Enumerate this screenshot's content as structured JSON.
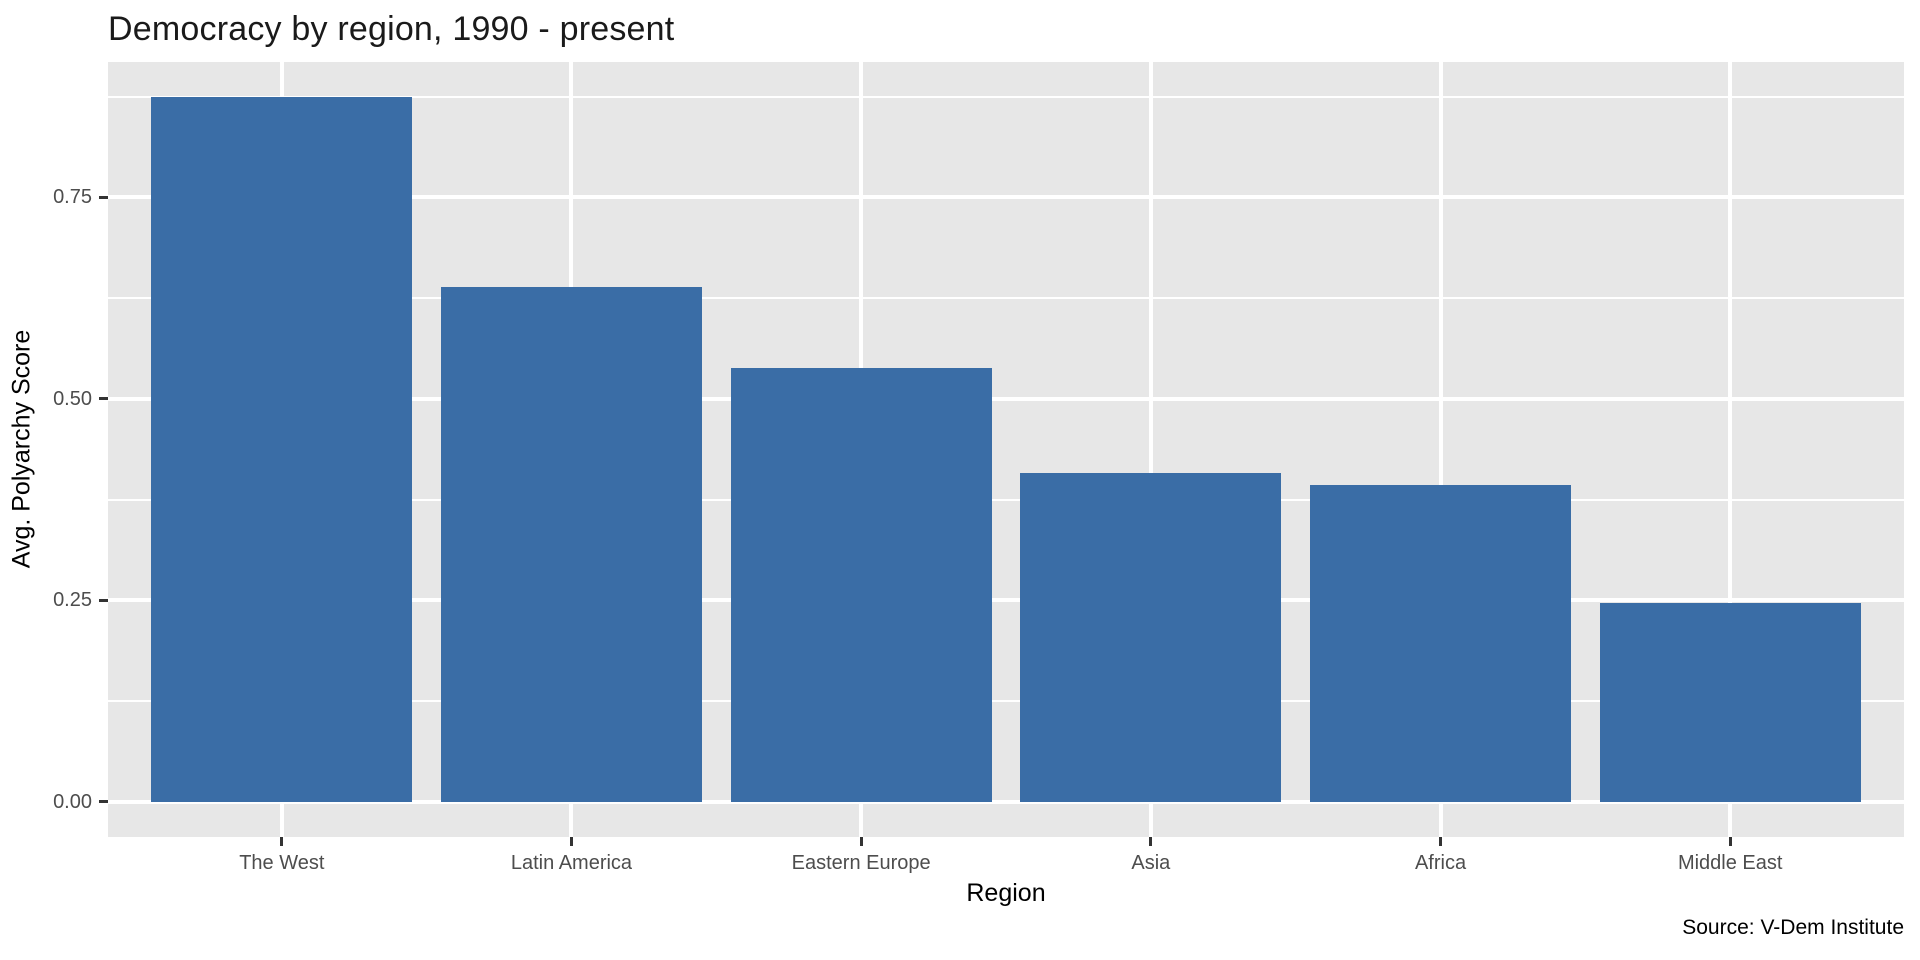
{
  "chart_data": {
    "type": "bar",
    "title": "Democracy by region, 1990 - present",
    "xlabel": "Region",
    "ylabel": "Avg. Polyarchy Score",
    "caption": "Source: V-Dem Institute",
    "categories": [
      "The West",
      "Latin America",
      "Eastern Europe",
      "Asia",
      "Africa",
      "Middle East"
    ],
    "values": [
      0.874,
      0.639,
      0.538,
      0.408,
      0.393,
      0.247
    ],
    "ytick_values": [
      0,
      0.25,
      0.5,
      0.75
    ],
    "ytick_labels": [
      "0.00",
      "0.25",
      "0.50",
      "0.75"
    ],
    "minor_ytick_values": [
      0.125,
      0.375,
      0.625,
      0.875
    ],
    "ylim": [
      -0.0437,
      0.918
    ],
    "grid": "white major and minor horizontal lines, white vertical line at each category center, drawn behind bars",
    "legend": "none",
    "style": {
      "bar_color": "#3A6DA6",
      "panel_background": "#E7E7E7",
      "grid_color": "#FFFFFF",
      "tick_label_color": "#4D4D4D",
      "tick_mark_color": "#333333"
    }
  }
}
